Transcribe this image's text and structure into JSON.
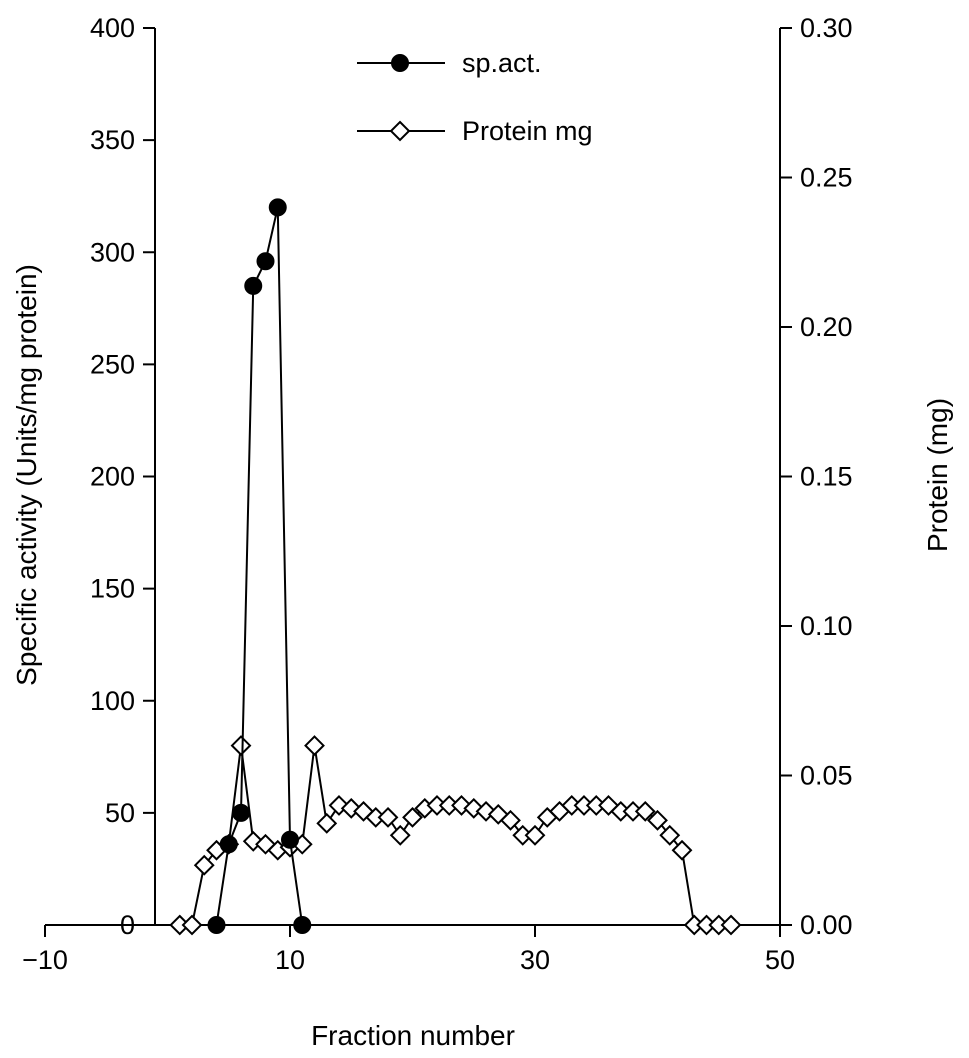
{
  "chart_data": {
    "type": "line",
    "title": "",
    "xlabel": "Fraction number",
    "ylabel_left": "Specific activity (Units/mg protein)",
    "ylabel_right": "Protein (mg)",
    "xlim": [
      -10,
      50
    ],
    "ylim_left": [
      0,
      400
    ],
    "ylim_right": [
      0,
      0.3
    ],
    "x_ticks": [
      "−10",
      "10",
      "30",
      "50"
    ],
    "x_tick_values": [
      -10,
      10,
      30,
      50
    ],
    "y_left_ticks": [
      "0",
      "50",
      "100",
      "150",
      "200",
      "250",
      "300",
      "350",
      "400"
    ],
    "y_left_tick_values": [
      0,
      50,
      100,
      150,
      200,
      250,
      300,
      350,
      400
    ],
    "y_right_ticks": [
      "0.00",
      "0.05",
      "0.10",
      "0.15",
      "0.20",
      "0.25",
      "0.30"
    ],
    "y_right_tick_values": [
      0,
      0.05,
      0.1,
      0.15,
      0.2,
      0.25,
      0.3
    ],
    "grid": false,
    "legend_position": "top-center",
    "series": [
      {
        "name": "sp.act.",
        "axis": "left",
        "marker": "filled-circle",
        "color": "#000000",
        "x": [
          4,
          5,
          6,
          7,
          8,
          9,
          10,
          11
        ],
        "y": [
          0,
          36,
          50,
          285,
          296,
          320,
          38,
          0
        ]
      },
      {
        "name": "Protein mg",
        "axis": "right",
        "marker": "open-diamond",
        "color": "#000000",
        "x": [
          1,
          2,
          3,
          4,
          5,
          6,
          7,
          8,
          9,
          10,
          11,
          12,
          13,
          14,
          15,
          16,
          17,
          18,
          19,
          20,
          21,
          22,
          23,
          24,
          25,
          26,
          27,
          28,
          29,
          30,
          31,
          32,
          33,
          34,
          35,
          36,
          37,
          38,
          39,
          40,
          41,
          42,
          43,
          44,
          45,
          46
        ],
        "y": [
          0,
          0,
          0.02,
          0.025,
          0.027,
          0.06,
          0.028,
          0.027,
          0.025,
          0.026,
          0.027,
          0.06,
          0.034,
          0.04,
          0.039,
          0.038,
          0.036,
          0.036,
          0.03,
          0.036,
          0.039,
          0.04,
          0.04,
          0.04,
          0.039,
          0.038,
          0.037,
          0.035,
          0.03,
          0.03,
          0.036,
          0.038,
          0.04,
          0.04,
          0.04,
          0.04,
          0.038,
          0.038,
          0.038,
          0.035,
          0.03,
          0.025,
          0,
          0,
          0,
          0
        ]
      }
    ]
  }
}
